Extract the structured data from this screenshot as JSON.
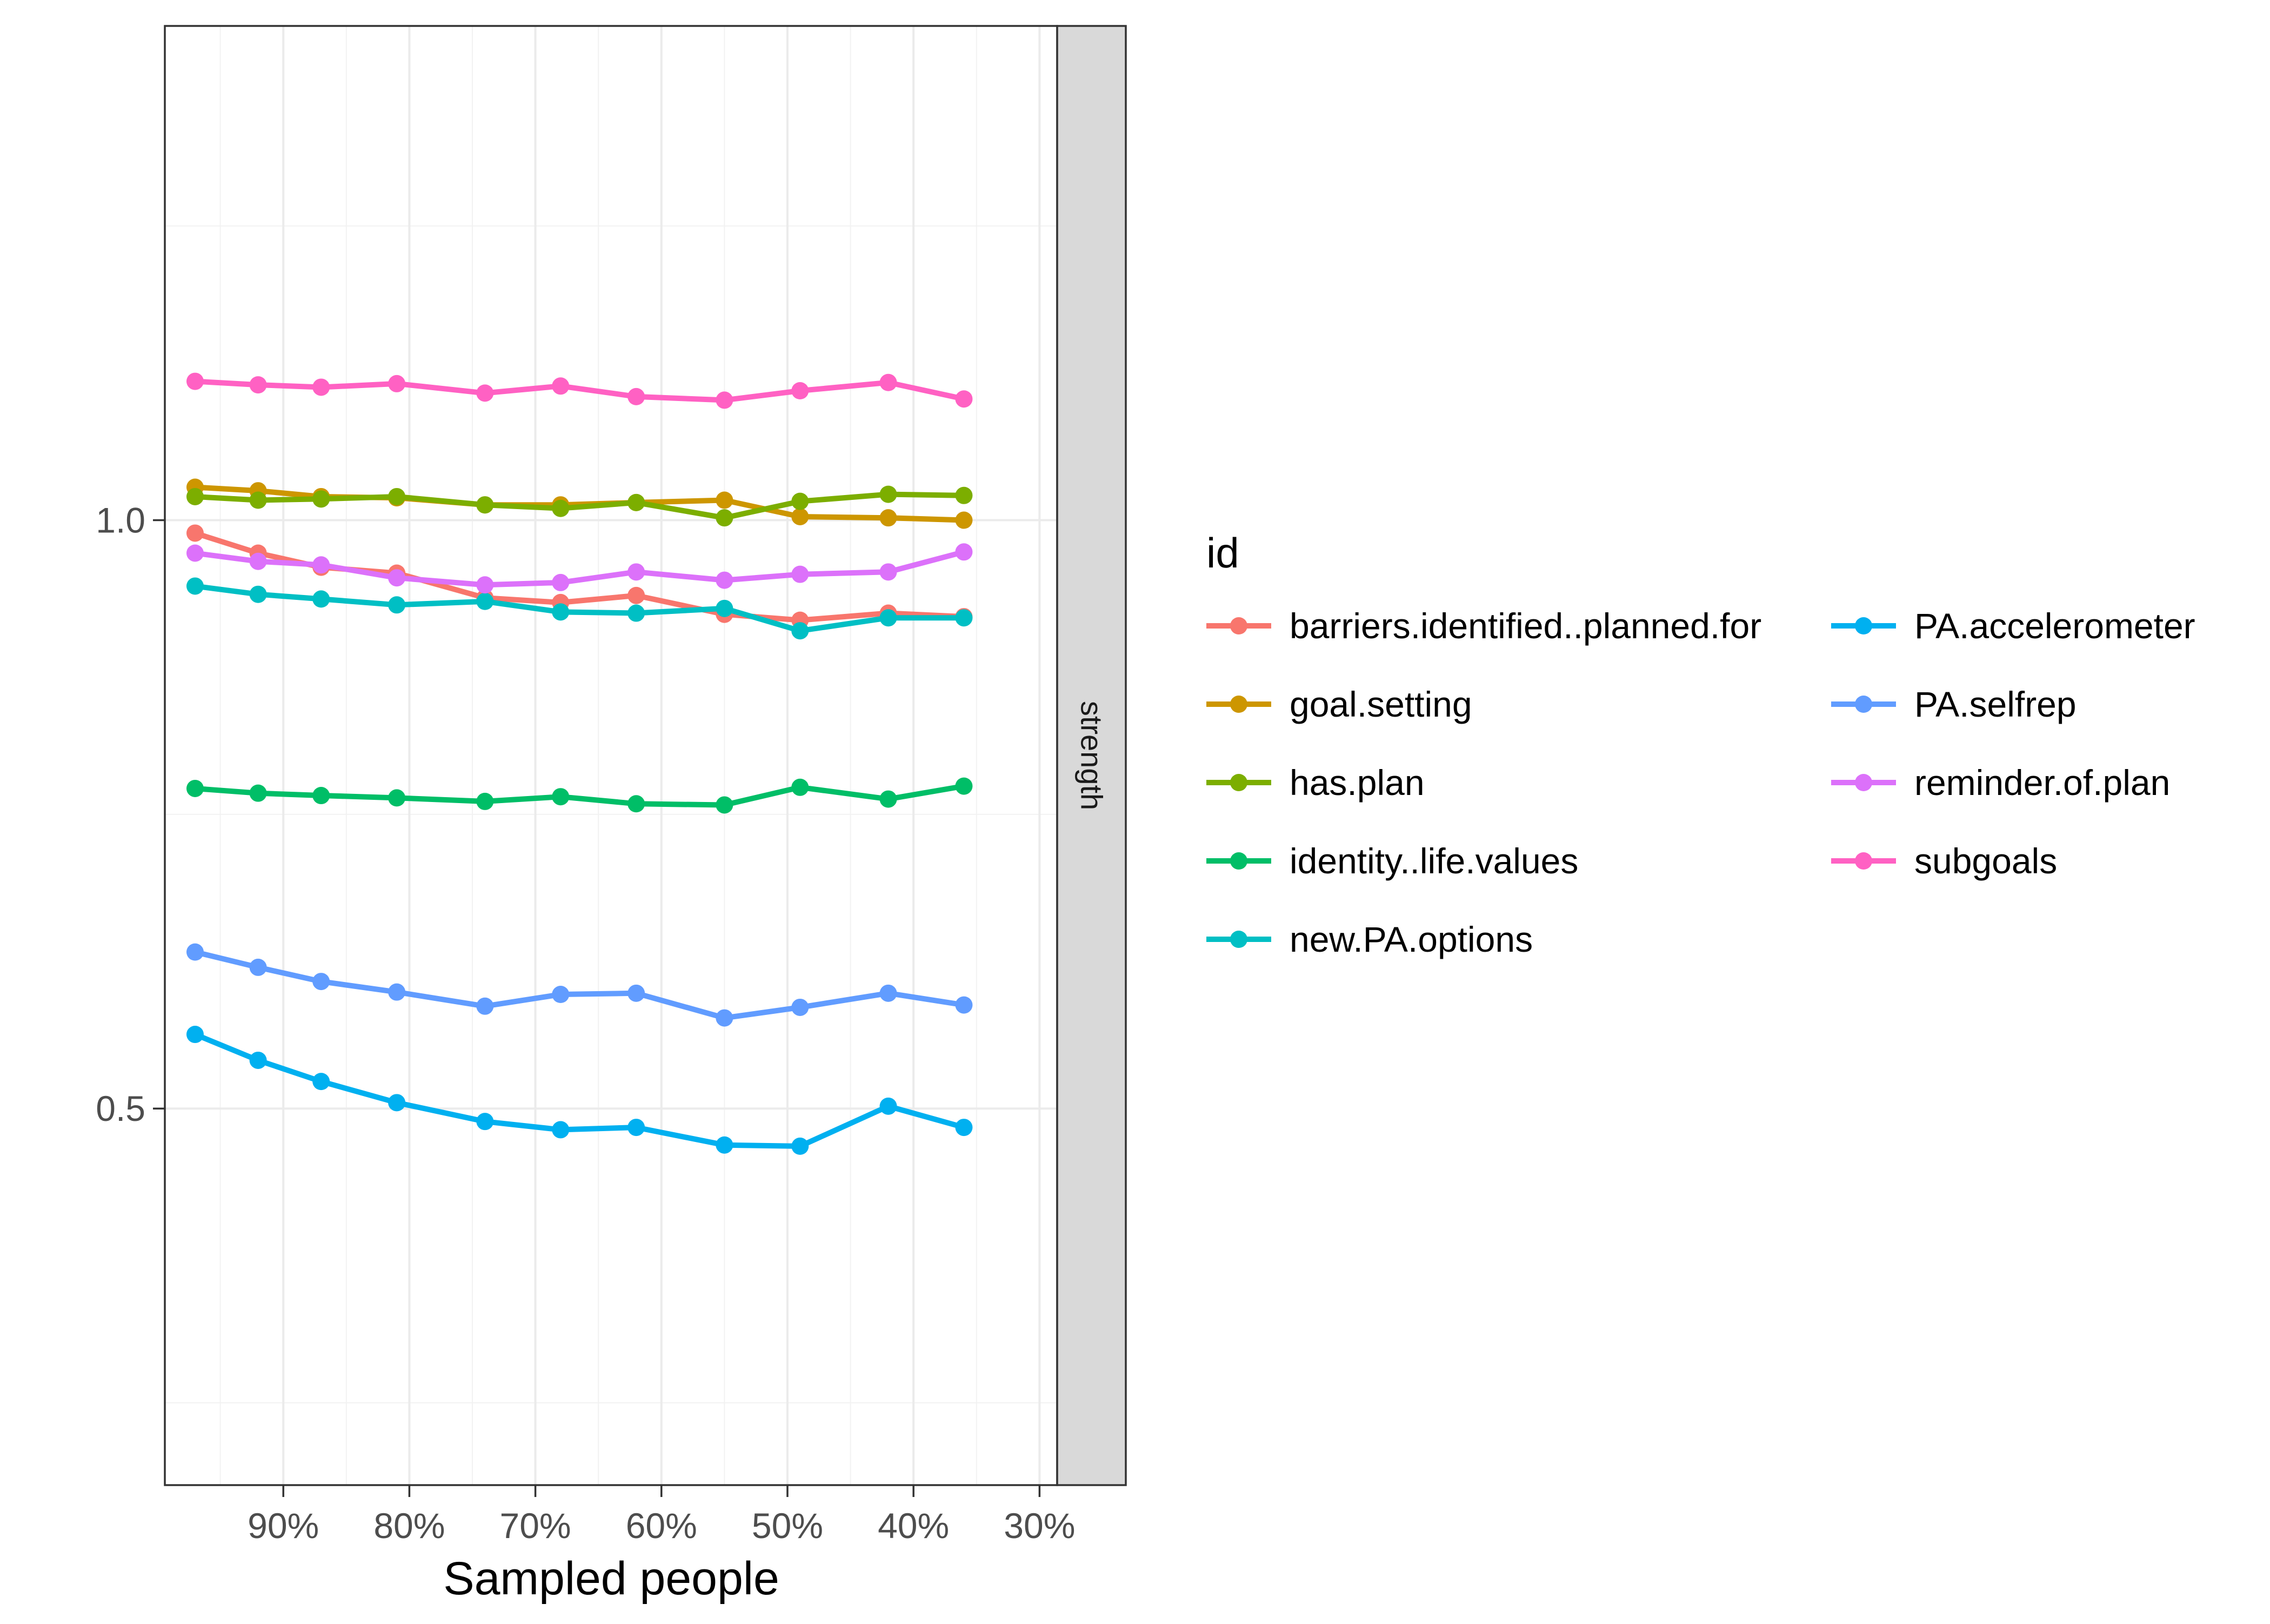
{
  "chart_data": {
    "type": "line",
    "title": "",
    "xlabel": "Sampled people",
    "ylabel": "",
    "facet_label": "strength",
    "legend_title": "id",
    "legend_position": "right",
    "grid": true,
    "x": [
      97,
      92,
      87,
      81,
      74,
      68,
      62,
      55,
      49,
      42,
      36
    ],
    "xlim": [
      99.4,
      28.6
    ],
    "x_ticks": [
      90,
      80,
      70,
      60,
      50,
      40,
      30
    ],
    "x_tick_labels": [
      "90%",
      "80%",
      "70%",
      "60%",
      "50%",
      "40%",
      "30%"
    ],
    "ylim": [
      0.18,
      1.42
    ],
    "y_ticks": [
      0.5,
      1.0
    ],
    "y_tick_labels": [
      "0.5",
      "1.0"
    ],
    "series": [
      {
        "name": "barriers.identified..planned.for",
        "color": "#F8766D",
        "values": [
          0.989,
          0.972,
          0.96,
          0.955,
          0.934,
          0.93,
          0.936,
          0.92,
          0.915,
          0.921,
          0.918
        ]
      },
      {
        "name": "goal.setting",
        "color": "#CD9600",
        "values": [
          1.028,
          1.025,
          1.02,
          1.019,
          1.013,
          1.013,
          1.015,
          1.017,
          1.003,
          1.002,
          1.0
        ]
      },
      {
        "name": "has.plan",
        "color": "#7CAE00",
        "values": [
          1.02,
          1.017,
          1.018,
          1.02,
          1.013,
          1.01,
          1.015,
          1.002,
          1.016,
          1.022,
          1.021
        ]
      },
      {
        "name": "identity..life.values",
        "color": "#00BE67",
        "values": [
          0.772,
          0.768,
          0.766,
          0.764,
          0.761,
          0.765,
          0.759,
          0.758,
          0.773,
          0.763,
          0.774
        ]
      },
      {
        "name": "new.PA.options",
        "color": "#00BFC4",
        "values": [
          0.944,
          0.937,
          0.933,
          0.928,
          0.931,
          0.922,
          0.921,
          0.925,
          0.906,
          0.917,
          0.917
        ]
      },
      {
        "name": "PA.accelerometer",
        "color": "#00B0F0",
        "values": [
          0.563,
          0.541,
          0.523,
          0.505,
          0.489,
          0.482,
          0.484,
          0.469,
          0.468,
          0.502,
          0.484
        ]
      },
      {
        "name": "PA.selfrep",
        "color": "#619CFF",
        "values": [
          0.633,
          0.62,
          0.608,
          0.599,
          0.587,
          0.597,
          0.598,
          0.577,
          0.586,
          0.598,
          0.588
        ]
      },
      {
        "name": "reminder.of.plan",
        "color": "#DC71FA",
        "values": [
          0.972,
          0.965,
          0.962,
          0.951,
          0.945,
          0.947,
          0.956,
          0.949,
          0.954,
          0.956,
          0.973
        ]
      },
      {
        "name": "subgoals",
        "color": "#FF61C3",
        "values": [
          1.118,
          1.115,
          1.113,
          1.116,
          1.108,
          1.114,
          1.105,
          1.102,
          1.11,
          1.117,
          1.103
        ]
      }
    ]
  }
}
